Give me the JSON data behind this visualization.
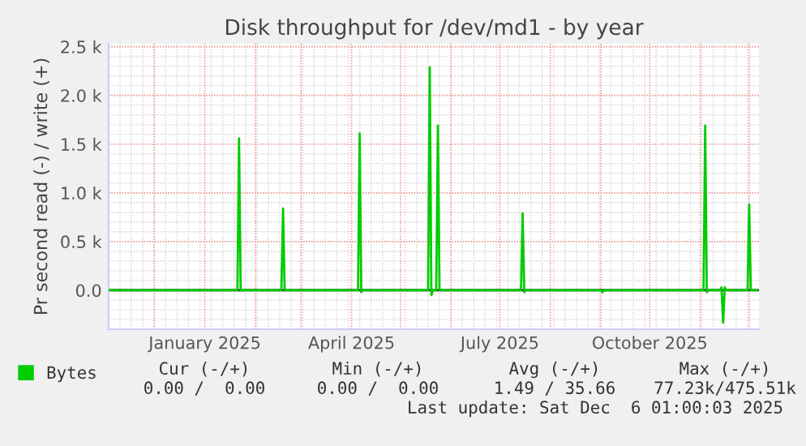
{
  "chart_data": {
    "type": "line",
    "title": "Disk throughput for /dev/md1 - by year",
    "ylabel": "Pr second read (-) / write (+)",
    "xlim": [
      "2024-11-03",
      "2025-12-07"
    ],
    "xticks": [
      {
        "value": "2025-01-01",
        "label": "January 2025"
      },
      {
        "value": "2025-04-01",
        "label": "April 2025"
      },
      {
        "value": "2025-07-01",
        "label": "July 2025"
      },
      {
        "value": "2025-10-01",
        "label": "October 2025"
      }
    ],
    "ylim": [
      -400,
      2530
    ],
    "yticks": [
      {
        "value": 0,
        "label": "0.0"
      },
      {
        "value": 500,
        "label": "0.5 k"
      },
      {
        "value": 1000,
        "label": "1.0 k"
      },
      {
        "value": 1500,
        "label": "1.5 k"
      },
      {
        "value": 2000,
        "label": "2.0 k"
      },
      {
        "value": 2500,
        "label": "2.5 k"
      }
    ],
    "grid": true,
    "legend": "bottom left",
    "marker": "none",
    "line_style": "solid",
    "ref_lines": [
      {
        "axis": "y",
        "value": 0,
        "color": "#000000"
      }
    ],
    "series": [
      {
        "name": "Bytes",
        "color": "#00cc00",
        "x": [
          "2024-11-03",
          "2025-01-21",
          "2025-01-22",
          "2025-01-23",
          "2025-02-17",
          "2025-02-18",
          "2025-02-19",
          "2025-04-05",
          "2025-04-06",
          "2025-04-07",
          "2025-04-08",
          "2025-05-18",
          "2025-05-19",
          "2025-05-20",
          "2025-05-21",
          "2025-05-23",
          "2025-05-24",
          "2025-05-25",
          "2025-07-14",
          "2025-07-15",
          "2025-07-16",
          "2025-07-17",
          "2025-09-01",
          "2025-09-02",
          "2025-09-03",
          "2025-11-03",
          "2025-11-04",
          "2025-11-05",
          "2025-11-06",
          "2025-11-13",
          "2025-11-14",
          "2025-11-15",
          "2025-11-16",
          "2025-11-17",
          "2025-11-30",
          "2025-12-01",
          "2025-12-02",
          "2025-12-06"
        ],
        "values": [
          0,
          0,
          1560,
          0,
          0,
          840,
          0,
          0,
          1610,
          -20,
          0,
          0,
          2290,
          -50,
          0,
          0,
          1690,
          0,
          0,
          790,
          -20,
          0,
          0,
          -20,
          0,
          0,
          1690,
          -20,
          0,
          0,
          30,
          -330,
          30,
          0,
          0,
          880,
          0,
          0
        ]
      }
    ],
    "annotations": [
      "Cur (-/+)",
      "Min (-/+)",
      "Avg (-/+)",
      "Max (-/+)",
      "0.00 /  0.00",
      "0.00 /  0.00",
      "1.49 / 35.66",
      "77.23k/475.51k",
      "Last update: Sat Dec  6 01:00:03 2025"
    ]
  }
}
